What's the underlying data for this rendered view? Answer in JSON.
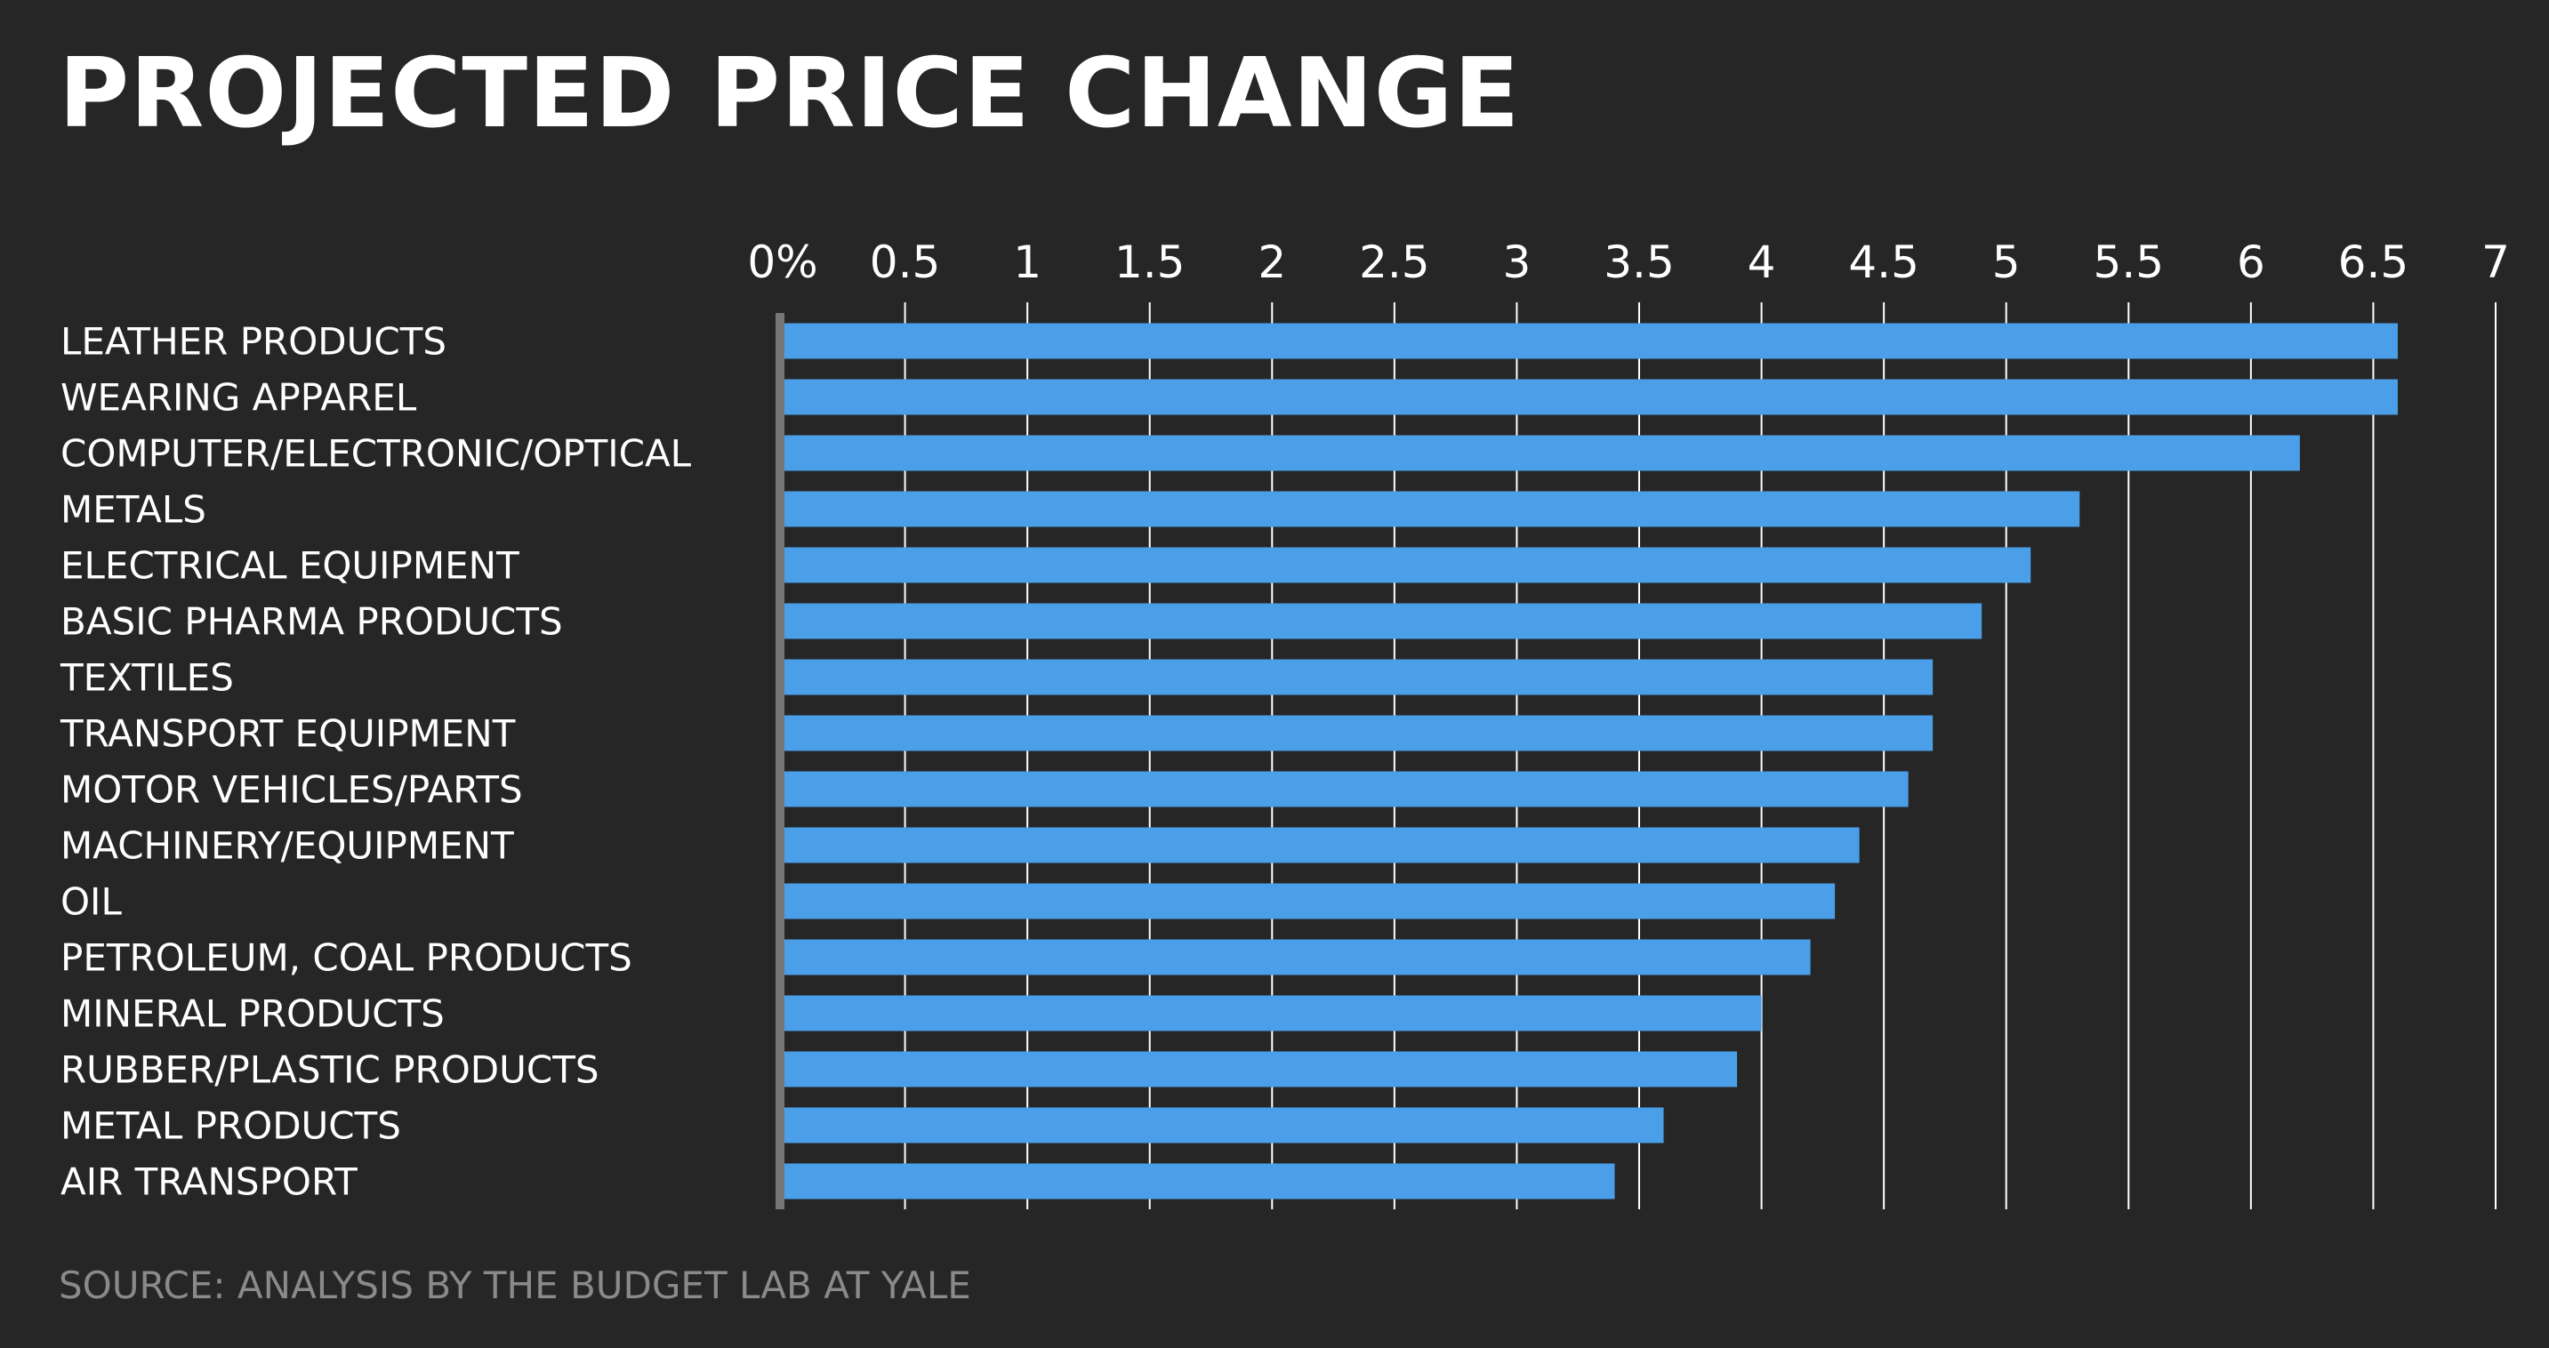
{
  "chart_data": {
    "type": "bar",
    "orientation": "horizontal",
    "title": "PROJECTED PRICE CHANGE",
    "source": "SOURCE: ANALYSIS BY THE BUDGET LAB AT YALE",
    "categories": [
      "LEATHER PRODUCTS",
      "WEARING APPAREL",
      "COMPUTER/ELECTRONIC/OPTICAL",
      "METALS",
      "ELECTRICAL EQUIPMENT",
      "BASIC PHARMA PRODUCTS",
      "TEXTILES",
      "TRANSPORT EQUIPMENT",
      "MOTOR VEHICLES/PARTS",
      "MACHINERY/EQUIPMENT",
      "OIL",
      "PETROLEUM, COAL PRODUCTS",
      "MINERAL PRODUCTS",
      "RUBBER/PLASTIC PRODUCTS",
      "METAL PRODUCTS",
      "AIR TRANSPORT"
    ],
    "values": [
      6.6,
      6.6,
      6.2,
      5.3,
      5.1,
      4.9,
      4.7,
      4.7,
      4.6,
      4.4,
      4.3,
      4.2,
      4.0,
      3.9,
      3.6,
      3.4
    ],
    "xlim": [
      0,
      7
    ],
    "xticks": [
      0,
      0.5,
      1,
      1.5,
      2,
      2.5,
      3,
      3.5,
      4,
      4.5,
      5,
      5.5,
      6,
      6.5,
      7
    ],
    "xtick_labels": [
      "0%",
      "0.5",
      "1",
      "1.5",
      "2",
      "2.5",
      "3",
      "3.5",
      "4",
      "4.5",
      "5",
      "5.5",
      "6",
      "6.5",
      "7"
    ],
    "xlabel": "",
    "ylabel": "",
    "grid": "vertical",
    "tick_position": "top",
    "colors": {
      "bar": "#4a9fe8",
      "background": "#262626",
      "grid": "#ffffff",
      "axis": "#777777"
    }
  }
}
